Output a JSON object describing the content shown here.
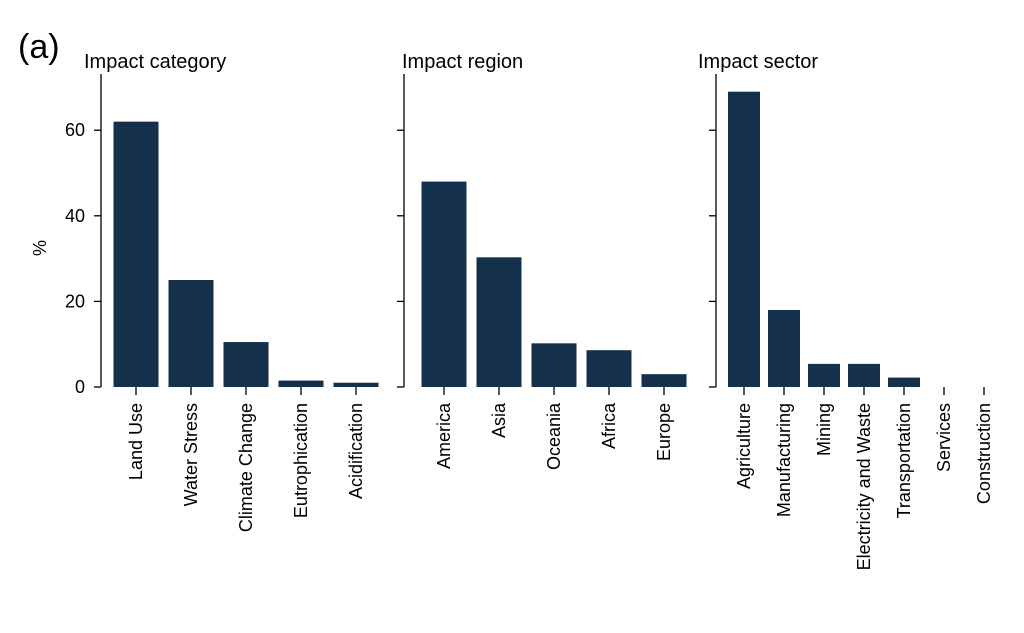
{
  "figure": {
    "panel_label": "(a)",
    "ylabel": "%",
    "bar_color": "#15304a"
  },
  "chart_data": [
    {
      "type": "bar",
      "title": "Impact category",
      "categories": [
        "Land Use",
        "Water Stress",
        "Climate Change",
        "Eutrophication",
        "Acidification"
      ],
      "values": [
        62,
        25,
        10.5,
        1.5,
        1
      ],
      "ylabel": "%",
      "ylim": [
        0,
        72
      ],
      "yticks": [
        0,
        20,
        40,
        60
      ],
      "grid": false
    },
    {
      "type": "bar",
      "title": "Impact region",
      "categories": [
        "America",
        "Asia",
        "Oceania",
        "Africa",
        "Europe"
      ],
      "values": [
        48,
        30.3,
        10.2,
        8.6,
        3
      ],
      "ylim": [
        0,
        72
      ],
      "yticks": [
        0,
        20,
        40,
        60
      ],
      "grid": false
    },
    {
      "type": "bar",
      "title": "Impact sector",
      "categories": [
        "Agriculture",
        "Manufacturing",
        "Mining",
        "Electricity and Waste",
        "Transportation",
        "Services",
        "Construction"
      ],
      "values": [
        69,
        18,
        5.4,
        5.4,
        2.2,
        0,
        0
      ],
      "ylim": [
        0,
        72
      ],
      "yticks": [
        0,
        20,
        40,
        60
      ],
      "grid": false
    }
  ]
}
